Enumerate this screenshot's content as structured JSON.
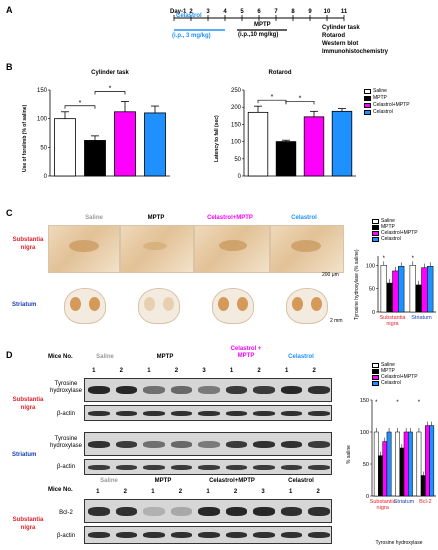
{
  "panelA": {
    "letter": "A",
    "days": [
      "Day-1",
      "2",
      "3",
      "4",
      "5",
      "6",
      "7",
      "8",
      "9",
      "10",
      "11"
    ],
    "celastrol_label": "Celastrol",
    "celastrol_dose": "(i.p., 3 mg/kg)",
    "mptp_label": "MPTP",
    "mptp_dose": "(i.p.,10 mg/kg)",
    "outcomes": [
      "Cylinder task",
      "Rotarod",
      "Western blot",
      "Immunohistochemistry"
    ]
  },
  "panelB": {
    "letter": "B",
    "cylinder_title": "Cylinder task",
    "rotarod_title": "Rotarod",
    "legend": [
      "Saline",
      "MPTP",
      "Celastrol+MPTP",
      "Celastrol"
    ]
  },
  "panelC": {
    "letter": "C",
    "col_labels": [
      "Saline",
      "MPTP",
      "Celastrol+MPTP",
      "Celastrol"
    ],
    "row_labels": [
      "Substantia nigra",
      "Striatum"
    ],
    "scale1": "200 μm",
    "scale2": "2 mm",
    "legend": [
      "Saline",
      "MPTP",
      "Celastrol+MPTP",
      "Celastrol"
    ]
  },
  "panelD": {
    "letter": "D",
    "mice_no": "Mice No.",
    "groups_top": [
      "Saline",
      "MPTP",
      "Celastrol + MPTP",
      "Celastrol"
    ],
    "lanes_top": [
      "1",
      "2",
      "1",
      "2",
      "3",
      "1",
      "2",
      "1",
      "2"
    ],
    "region_sn": "Substantia nigra",
    "region_st": "Striatum",
    "proteins": [
      "Tyrosine hydroxylase",
      "β-actin",
      "Tyrosine hydroxylase",
      "β-actin",
      "Bcl-2",
      "β-actin"
    ],
    "groups_bottom": [
      "Saline",
      "MPTP",
      "Celastrol+MPTP",
      "Celastrol"
    ],
    "lanes_bottom": [
      "1",
      "2",
      "1",
      "2",
      "1",
      "2",
      "3",
      "1",
      "2"
    ],
    "legend": [
      "Saline",
      "MPTP",
      "Celastrol+MPTP",
      "Celastrol"
    ],
    "xgroup_caption": "Tyrosine hydroxylase"
  },
  "colors": {
    "saline": "#ffffff",
    "mptp": "#000000",
    "celastrol_mptp": "#ff00ff",
    "celastrol": "#1e90ff",
    "red_label": "#e8202a",
    "blue_label": "#1a3fb3"
  },
  "chart_data": [
    {
      "type": "bar",
      "title": "Cylinder task",
      "ylabel": "Use of forelimb (% of saline)",
      "categories": [
        "Saline",
        "MPTP",
        "Celastrol+MPTP",
        "Celastrol"
      ],
      "values": [
        100,
        62,
        112,
        110
      ],
      "errors": [
        12,
        8,
        18,
        12
      ],
      "ylim": [
        0,
        150
      ],
      "yticks": [
        "0",
        "50",
        "100",
        "150"
      ],
      "significance": [
        "*",
        "*"
      ]
    },
    {
      "type": "bar",
      "title": "Rotarod",
      "ylabel": "Latency to fall (sec)",
      "categories": [
        "Saline",
        "MPTP",
        "Celastrol+MPTP",
        "Celastrol"
      ],
      "values": [
        185,
        100,
        172,
        188
      ],
      "errors": [
        18,
        4,
        16,
        8
      ],
      "ylim": [
        0,
        250
      ],
      "yticks": [
        "0",
        "50",
        "100",
        "150",
        "200",
        "250"
      ],
      "significance": [
        "*",
        "*"
      ]
    },
    {
      "type": "bar",
      "ylabel": "Tyrosine hydroxylase (% saline)",
      "groups": [
        "Substantia nigra",
        "Striatum"
      ],
      "series": [
        {
          "name": "Saline",
          "values": [
            100,
            100
          ]
        },
        {
          "name": "MPTP",
          "values": [
            62,
            58
          ]
        },
        {
          "name": "Celastrol+MPTP",
          "values": [
            88,
            95
          ]
        },
        {
          "name": "Celastrol",
          "values": [
            98,
            98
          ]
        }
      ],
      "ylim": [
        0,
        120
      ],
      "yticks": [
        "0",
        "50",
        "100"
      ]
    },
    {
      "type": "bar",
      "ylabel": "% saline",
      "groups": [
        "Substantia nigra",
        "Striatum",
        "Bcl-2"
      ],
      "series": [
        {
          "name": "Saline",
          "values": [
            100,
            100,
            100
          ]
        },
        {
          "name": "MPTP",
          "values": [
            63,
            75,
            32
          ]
        },
        {
          "name": "Celastrol+MPTP",
          "values": [
            85,
            100,
            110
          ]
        },
        {
          "name": "Celastrol",
          "values": [
            100,
            100,
            110
          ]
        }
      ],
      "ylim": [
        0,
        150
      ],
      "yticks": [
        "0",
        "50",
        "100",
        "150"
      ]
    }
  ]
}
